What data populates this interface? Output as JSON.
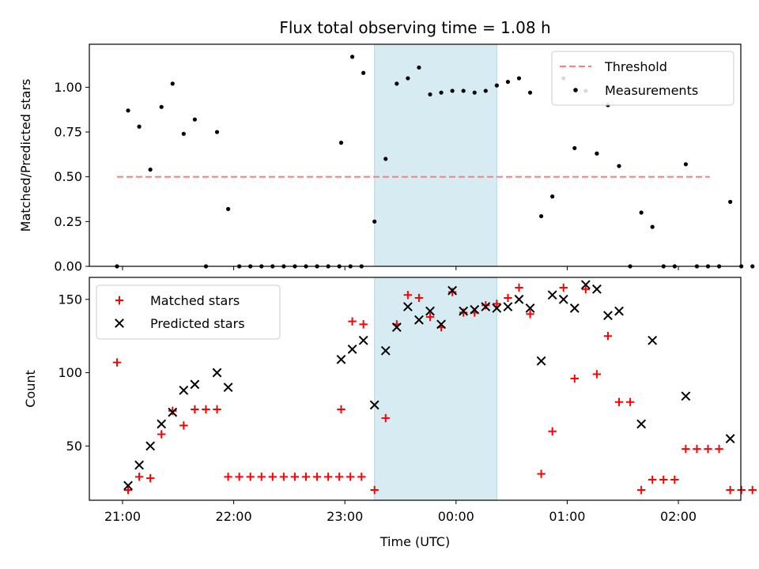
{
  "chart_data": [
    {
      "type": "scatter",
      "title": "Flux total observing time = 1.08 h",
      "xlabel": "",
      "ylabel": "Matched/Predicted stars",
      "ylim": [
        0,
        1.24
      ],
      "yticks": [
        "0.00",
        "0.25",
        "0.50",
        "0.75",
        "1.00"
      ],
      "ytick_values": [
        0,
        0.25,
        0.5,
        0.75,
        1.0
      ],
      "shaded_range": [
        "23:16",
        "00:22"
      ],
      "legend": {
        "placement": "upper right",
        "entries": [
          "Threshold",
          "Measurements"
        ]
      },
      "threshold": {
        "name": "Threshold",
        "y": 0.5,
        "x": [
          "20:57",
          "02:17"
        ],
        "color": "#ff7f7f",
        "style": "dashed"
      },
      "series": [
        {
          "name": "Measurements",
          "color": "#000000",
          "points": [
            [
              "20:57",
              0.0
            ],
            [
              "21:03",
              0.87
            ],
            [
              "21:09",
              0.78
            ],
            [
              "21:15",
              0.54
            ],
            [
              "21:21",
              0.89
            ],
            [
              "21:27",
              1.02
            ],
            [
              "21:33",
              0.74
            ],
            [
              "21:39",
              0.82
            ],
            [
              "21:45",
              0.0
            ],
            [
              "21:51",
              0.75
            ],
            [
              "21:57",
              0.32
            ],
            [
              "22:03",
              0.0
            ],
            [
              "22:09",
              0.0
            ],
            [
              "22:15",
              0.0
            ],
            [
              "22:21",
              0.0
            ],
            [
              "22:27",
              0.0
            ],
            [
              "22:33",
              0.0
            ],
            [
              "22:39",
              0.0
            ],
            [
              "22:45",
              0.0
            ],
            [
              "22:51",
              0.0
            ],
            [
              "22:57",
              0.0
            ],
            [
              "23:03",
              0.0
            ],
            [
              "23:09",
              0.0
            ],
            [
              "22:58",
              0.69
            ],
            [
              "23:04",
              1.17
            ],
            [
              "23:10",
              1.08
            ],
            [
              "23:16",
              0.25
            ],
            [
              "23:22",
              0.6
            ],
            [
              "23:28",
              1.02
            ],
            [
              "23:34",
              1.05
            ],
            [
              "23:40",
              1.11
            ],
            [
              "23:46",
              0.96
            ],
            [
              "23:52",
              0.97
            ],
            [
              "23:58",
              0.98
            ],
            [
              "00:04",
              0.98
            ],
            [
              "00:10",
              0.97
            ],
            [
              "00:16",
              0.98
            ],
            [
              "00:22",
              1.01
            ],
            [
              "00:28",
              1.03
            ],
            [
              "00:34",
              1.05
            ],
            [
              "00:40",
              0.97
            ],
            [
              "00:46",
              0.28
            ],
            [
              "00:52",
              0.39
            ],
            [
              "00:58",
              1.05
            ],
            [
              "01:04",
              0.66
            ],
            [
              "01:10",
              0.98
            ],
            [
              "01:16",
              0.63
            ],
            [
              "01:22",
              0.9
            ],
            [
              "01:28",
              0.56
            ],
            [
              "01:34",
              0.0
            ],
            [
              "01:40",
              0.3
            ],
            [
              "01:46",
              0.22
            ],
            [
              "01:52",
              0.0
            ],
            [
              "01:58",
              0.0
            ],
            [
              "02:04",
              0.57
            ],
            [
              "02:10",
              0.0
            ],
            [
              "02:16",
              0.0
            ],
            [
              "02:22",
              0.0
            ],
            [
              "02:28",
              0.36
            ],
            [
              "02:34",
              0.0
            ],
            [
              "02:40",
              0.0
            ],
            [
              "02:46",
              0.0
            ]
          ]
        }
      ]
    },
    {
      "type": "scatter",
      "title": "",
      "xlabel": "Time (UTC)",
      "ylabel": "Count",
      "ylim": [
        13,
        165
      ],
      "yticks": [
        "50",
        "100",
        "150"
      ],
      "ytick_values": [
        50,
        100,
        150
      ],
      "xticks": [
        "21:00",
        "22:00",
        "23:00",
        "00:00",
        "01:00",
        "02:00"
      ],
      "shaded_range": [
        "23:16",
        "00:22"
      ],
      "legend": {
        "placement": "upper left",
        "entries": [
          "Matched stars",
          "Predicted stars"
        ]
      },
      "series": [
        {
          "name": "Matched stars",
          "color": "#ff0000",
          "marker": "+",
          "points": [
            [
              "20:57",
              107
            ],
            [
              "21:03",
              20
            ],
            [
              "21:09",
              29
            ],
            [
              "21:15",
              28
            ],
            [
              "21:21",
              58
            ],
            [
              "21:27",
              74
            ],
            [
              "21:33",
              64
            ],
            [
              "21:39",
              75
            ],
            [
              "21:45",
              75
            ],
            [
              "21:51",
              75
            ],
            [
              "21:57",
              29
            ],
            [
              "22:03",
              29
            ],
            [
              "22:09",
              29
            ],
            [
              "22:15",
              29
            ],
            [
              "22:21",
              29
            ],
            [
              "22:27",
              29
            ],
            [
              "22:33",
              29
            ],
            [
              "22:39",
              29
            ],
            [
              "22:45",
              29
            ],
            [
              "22:51",
              29
            ],
            [
              "22:57",
              29
            ],
            [
              "23:03",
              29
            ],
            [
              "23:09",
              29
            ],
            [
              "22:58",
              75
            ],
            [
              "23:04",
              135
            ],
            [
              "23:10",
              133
            ],
            [
              "23:16",
              20
            ],
            [
              "23:22",
              69
            ],
            [
              "23:28",
              133
            ],
            [
              "23:34",
              153
            ],
            [
              "23:40",
              151
            ],
            [
              "23:46",
              138
            ],
            [
              "23:52",
              131
            ],
            [
              "23:58",
              155
            ],
            [
              "00:04",
              141
            ],
            [
              "00:10",
              141
            ],
            [
              "00:16",
              146
            ],
            [
              "00:22",
              147
            ],
            [
              "00:28",
              151
            ],
            [
              "00:34",
              158
            ],
            [
              "00:40",
              140
            ],
            [
              "00:46",
              31
            ],
            [
              "00:52",
              60
            ],
            [
              "00:58",
              158
            ],
            [
              "01:04",
              96
            ],
            [
              "01:10",
              157
            ],
            [
              "01:16",
              99
            ],
            [
              "01:22",
              125
            ],
            [
              "01:28",
              80
            ],
            [
              "01:34",
              80
            ],
            [
              "01:40",
              20
            ],
            [
              "01:46",
              27
            ],
            [
              "01:52",
              27
            ],
            [
              "01:58",
              27
            ],
            [
              "02:04",
              48
            ],
            [
              "02:10",
              48
            ],
            [
              "02:16",
              48
            ],
            [
              "02:22",
              48
            ],
            [
              "02:28",
              20
            ],
            [
              "02:34",
              20
            ],
            [
              "02:40",
              20
            ],
            [
              "02:46",
              20
            ]
          ]
        },
        {
          "name": "Predicted stars",
          "color": "#000000",
          "marker": "x",
          "points": [
            [
              "21:03",
              23
            ],
            [
              "21:09",
              37
            ],
            [
              "21:15",
              50
            ],
            [
              "21:21",
              65
            ],
            [
              "21:27",
              73
            ],
            [
              "21:33",
              88
            ],
            [
              "21:39",
              92
            ],
            [
              "21:51",
              100
            ],
            [
              "21:57",
              90
            ],
            [
              "22:58",
              109
            ],
            [
              "23:04",
              116
            ],
            [
              "23:10",
              122
            ],
            [
              "23:16",
              78
            ],
            [
              "23:22",
              115
            ],
            [
              "23:28",
              131
            ],
            [
              "23:34",
              145
            ],
            [
              "23:40",
              136
            ],
            [
              "23:46",
              142
            ],
            [
              "23:52",
              133
            ],
            [
              "23:58",
              156
            ],
            [
              "00:04",
              142
            ],
            [
              "00:10",
              143
            ],
            [
              "00:16",
              145
            ],
            [
              "00:22",
              144
            ],
            [
              "00:28",
              145
            ],
            [
              "00:34",
              150
            ],
            [
              "00:40",
              144
            ],
            [
              "00:46",
              108
            ],
            [
              "00:52",
              153
            ],
            [
              "00:58",
              150
            ],
            [
              "01:04",
              144
            ],
            [
              "01:10",
              160
            ],
            [
              "01:16",
              157
            ],
            [
              "01:22",
              139
            ],
            [
              "01:28",
              142
            ],
            [
              "01:40",
              65
            ],
            [
              "01:46",
              122
            ],
            [
              "02:04",
              84
            ],
            [
              "02:28",
              55
            ]
          ]
        }
      ]
    }
  ]
}
